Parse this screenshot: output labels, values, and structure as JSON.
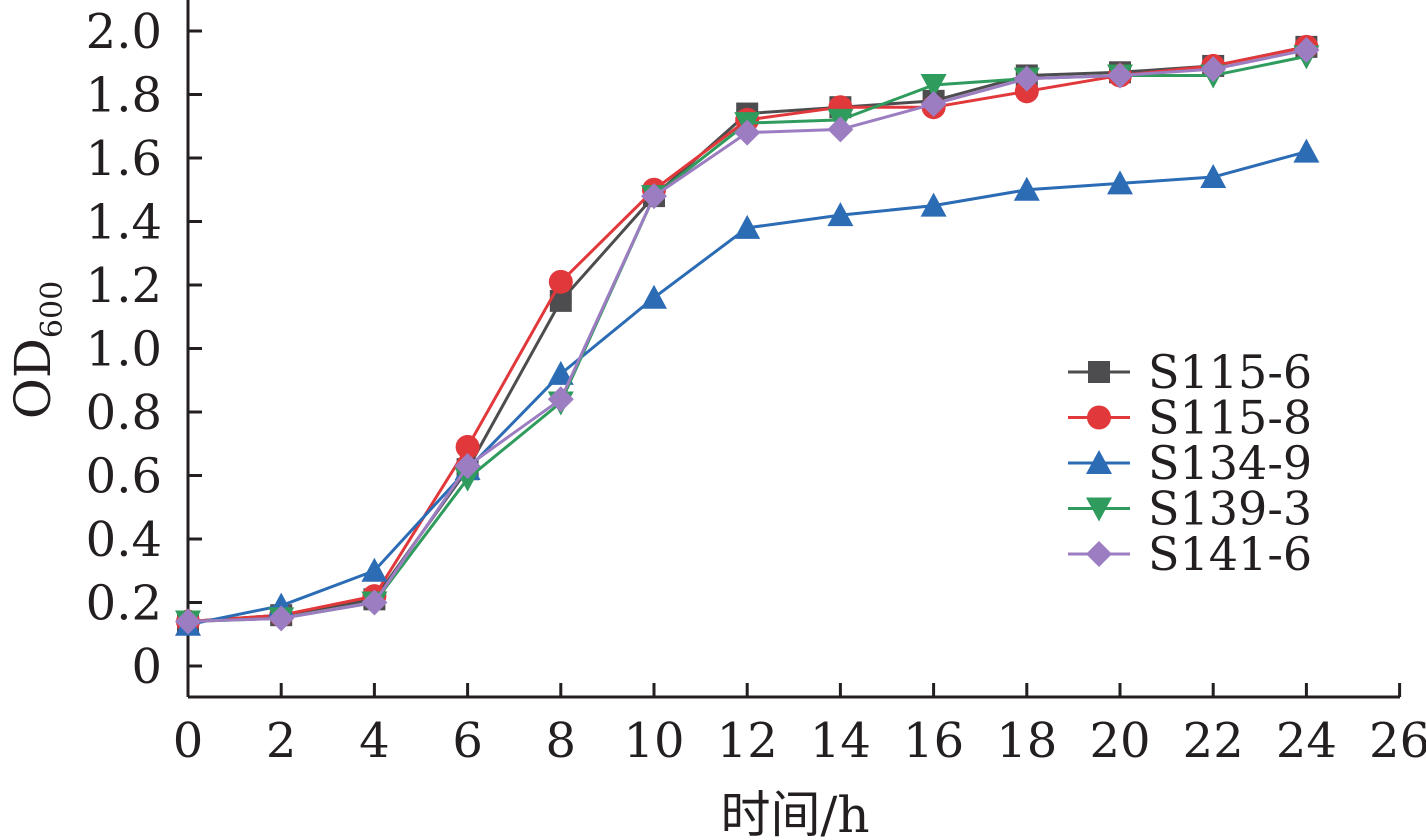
{
  "chart_data": {
    "type": "line",
    "title": "",
    "xlabel": "时间/h",
    "ylabel": "OD",
    "ylabel_subscript": "600",
    "xlim": [
      0,
      26
    ],
    "ylim": [
      -0.1,
      2.1
    ],
    "xticks": [
      0,
      2,
      4,
      6,
      8,
      10,
      12,
      14,
      16,
      18,
      20,
      22,
      24,
      26
    ],
    "yticks": [
      0,
      0.2,
      0.4,
      0.6,
      0.8,
      1.0,
      1.2,
      1.4,
      1.6,
      1.8,
      2.0
    ],
    "ytick_labels": [
      "0",
      "0.2",
      "0.4",
      "0.6",
      "0.8",
      "1.0",
      "1.2",
      "1.4",
      "1.6",
      "1.8",
      "2.0"
    ],
    "grid": false,
    "legend_position": "right",
    "x": [
      0,
      2,
      4,
      6,
      8,
      10,
      12,
      14,
      16,
      18,
      20,
      22,
      24
    ],
    "series": [
      {
        "name": "S115-6",
        "marker": "square",
        "color": "#4d4d4f",
        "values": [
          0.14,
          0.16,
          0.21,
          0.62,
          1.15,
          1.48,
          1.74,
          1.76,
          1.78,
          1.86,
          1.87,
          1.89,
          1.95
        ]
      },
      {
        "name": "S115-8",
        "marker": "circle",
        "color": "#e1383b",
        "values": [
          0.14,
          0.16,
          0.22,
          0.69,
          1.21,
          1.5,
          1.72,
          1.76,
          1.76,
          1.81,
          1.86,
          1.89,
          1.95
        ]
      },
      {
        "name": "S134-9",
        "marker": "triangle-up",
        "color": "#2b6cb5",
        "values": [
          0.13,
          0.19,
          0.3,
          0.62,
          0.92,
          1.16,
          1.38,
          1.42,
          1.45,
          1.5,
          1.52,
          1.54,
          1.62
        ]
      },
      {
        "name": "S139-3",
        "marker": "triangle-down",
        "color": "#2f9b5d",
        "values": [
          0.14,
          0.15,
          0.2,
          0.59,
          0.83,
          1.48,
          1.71,
          1.72,
          1.83,
          1.85,
          1.86,
          1.86,
          1.92
        ]
      },
      {
        "name": "S141-6",
        "marker": "diamond",
        "color": "#9c7dc1",
        "values": [
          0.14,
          0.15,
          0.2,
          0.63,
          0.84,
          1.48,
          1.68,
          1.69,
          1.77,
          1.85,
          1.86,
          1.88,
          1.94
        ]
      }
    ]
  }
}
